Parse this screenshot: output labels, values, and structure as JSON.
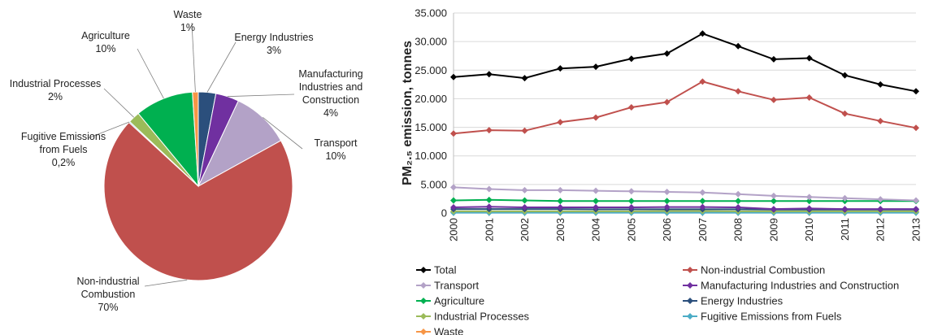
{
  "chart_data": [
    {
      "type": "pie",
      "slices": [
        {
          "label_lines": [
            "Energy Industries"
          ],
          "pct_label": "3%",
          "value": 3,
          "color": "#2b4f7c"
        },
        {
          "label_lines": [
            "Manufacturing",
            "Industries and",
            "Construction"
          ],
          "pct_label": "4%",
          "value": 4,
          "color": "#7030a0"
        },
        {
          "label_lines": [
            "Transport"
          ],
          "pct_label": "10%",
          "value": 10,
          "color": "#b3a2c7"
        },
        {
          "label_lines": [
            "Non-industrial",
            "Combustion"
          ],
          "pct_label": "70%",
          "value": 70,
          "color": "#c0504d"
        },
        {
          "label_lines": [
            "Fugitive Emissions",
            "from Fuels"
          ],
          "pct_label": "0,2%",
          "value": 0.2,
          "color": "#4bacc6"
        },
        {
          "label_lines": [
            "Industrial Processes"
          ],
          "pct_label": "2%",
          "value": 2,
          "color": "#9bbb59"
        },
        {
          "label_lines": [
            "Agriculture"
          ],
          "pct_label": "10%",
          "value": 10,
          "color": "#00b050"
        },
        {
          "label_lines": [
            "Waste"
          ],
          "pct_label": "1%",
          "value": 1,
          "color": "#f79646"
        }
      ]
    },
    {
      "type": "line",
      "ylabel": "PM₂.₅ emission, tonnes",
      "ylim": [
        0,
        35000
      ],
      "yticks": [
        0,
        5000,
        10000,
        15000,
        20000,
        25000,
        30000,
        35000
      ],
      "ytick_labels": [
        "0",
        "5.000",
        "10.000",
        "15.000",
        "20.000",
        "25.000",
        "30.000",
        "35.000"
      ],
      "x": [
        "2000",
        "2001",
        "2002",
        "2003",
        "2004",
        "2005",
        "2006",
        "2007",
        "2008",
        "2009",
        "2010",
        "2011",
        "2012",
        "2013"
      ],
      "grid": true,
      "legend_position": "bottom",
      "series": [
        {
          "name": "Total",
          "color": "#000000",
          "values": [
            23800,
            24300,
            23600,
            25300,
            25600,
            27000,
            27900,
            31400,
            29200,
            26900,
            27100,
            24100,
            22500,
            21300
          ]
        },
        {
          "name": "Non-industrial Combustion",
          "color": "#c0504d",
          "values": [
            13900,
            14500,
            14400,
            15900,
            16700,
            18500,
            19400,
            23000,
            21300,
            19800,
            20200,
            17400,
            16100,
            14900
          ]
        },
        {
          "name": "Transport",
          "color": "#b3a2c7",
          "values": [
            4500,
            4200,
            4000,
            4000,
            3900,
            3800,
            3700,
            3600,
            3300,
            3000,
            2800,
            2600,
            2400,
            2200
          ]
        },
        {
          "name": "Manufacturing Industries and Construction",
          "color": "#7030a0",
          "values": [
            1000,
            1100,
            1000,
            1000,
            1000,
            1000,
            1050,
            1050,
            1000,
            700,
            800,
            700,
            700,
            700
          ]
        },
        {
          "name": "Agriculture",
          "color": "#00b050",
          "values": [
            2200,
            2300,
            2200,
            2100,
            2100,
            2100,
            2100,
            2100,
            2100,
            2100,
            2100,
            2100,
            2100,
            2100
          ]
        },
        {
          "name": "Energy Industries",
          "color": "#2b4f7c",
          "values": [
            700,
            700,
            700,
            700,
            650,
            650,
            650,
            650,
            650,
            600,
            600,
            600,
            600,
            600
          ]
        },
        {
          "name": "Industrial Processes",
          "color": "#9bbb59",
          "values": [
            300,
            300,
            300,
            300,
            300,
            300,
            350,
            350,
            300,
            300,
            300,
            300,
            300,
            300
          ]
        },
        {
          "name": "Fugitive Emissions from Fuels",
          "color": "#4bacc6",
          "values": [
            50,
            50,
            50,
            50,
            50,
            50,
            50,
            50,
            50,
            50,
            50,
            50,
            50,
            50
          ]
        },
        {
          "name": "Waste",
          "color": "#f79646",
          "values": [
            250,
            250,
            250,
            250,
            250,
            250,
            250,
            250,
            250,
            250,
            250,
            250,
            250,
            250
          ]
        }
      ]
    }
  ]
}
